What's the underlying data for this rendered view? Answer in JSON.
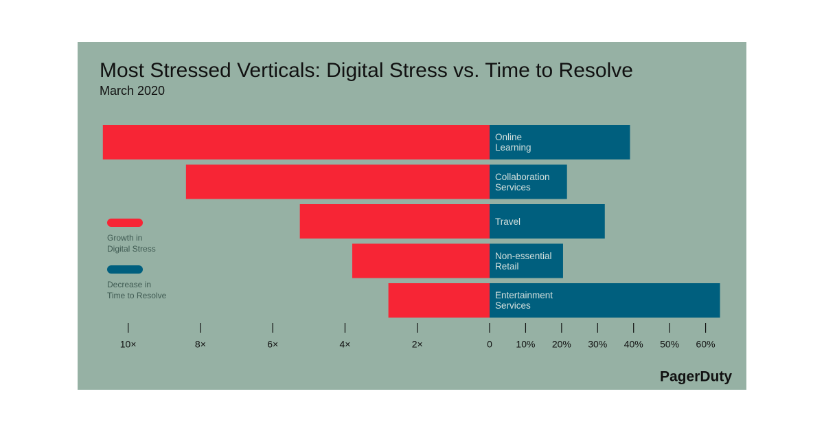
{
  "chart_data": {
    "type": "bar",
    "orientation": "diverging",
    "title": "Most Stressed Verticals: Digital Stress vs. Time to Resolve",
    "subtitle": "March 2020",
    "brand": "PagerDuty",
    "categories": [
      "Online Learning",
      "Collaboration Services",
      "Travel",
      "Non-essential Retail",
      "Entertainment Services"
    ],
    "series": [
      {
        "name": "Growth in Digital Stress",
        "color": "#f72535",
        "values": [
          10.7,
          8.4,
          5.25,
          3.8,
          2.8
        ]
      },
      {
        "name": "Decrease in Time to Resolve",
        "color": "#005f7e",
        "axis": "x2",
        "values": [
          39,
          21.5,
          32,
          20.4,
          64
        ]
      }
    ],
    "xlim": [
      0,
      11
    ],
    "xticks": [
      {
        "value": 10,
        "label": "10×"
      },
      {
        "value": 8,
        "label": "8×"
      },
      {
        "value": 6,
        "label": "6×"
      },
      {
        "value": 4,
        "label": "4×"
      },
      {
        "value": 2,
        "label": "2×"
      },
      0
    ],
    "x2lim": [
      0,
      70
    ],
    "x2ticks": [
      {
        "value": 10,
        "label": "10%"
      },
      {
        "value": 20,
        "label": "20%"
      },
      {
        "value": 30,
        "label": "30%"
      },
      {
        "value": 40,
        "label": "40%"
      },
      {
        "value": 50,
        "label": "50%"
      },
      {
        "value": 60,
        "label": "60%"
      }
    ]
  }
}
